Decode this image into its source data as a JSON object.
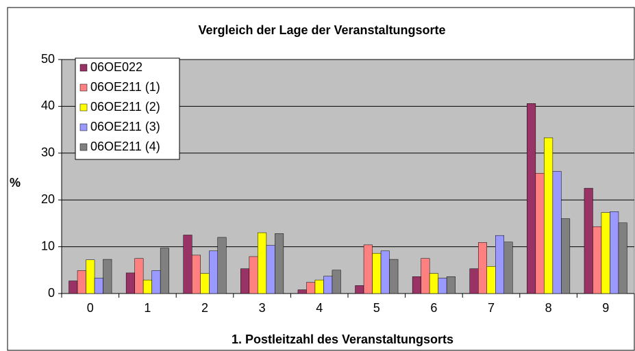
{
  "chart_data": {
    "type": "bar",
    "title": "Vergleich der Lage der Veranstaltungsorte",
    "x_label": "1. Postleitzahl des Veranstaltungsorts",
    "y_label": "%",
    "categories": [
      "0",
      "1",
      "2",
      "3",
      "4",
      "5",
      "6",
      "7",
      "8",
      "9"
    ],
    "series": [
      {
        "name": "06OE022",
        "color": "#993366",
        "values": [
          2.7,
          4.4,
          12.5,
          5.3,
          0.8,
          1.7,
          3.6,
          5.3,
          40.6,
          22.5
        ]
      },
      {
        "name": "06OE211 (1)",
        "color": "#ff8080",
        "values": [
          4.9,
          7.5,
          8.2,
          7.9,
          2.4,
          10.4,
          7.5,
          10.9,
          25.7,
          14.3
        ]
      },
      {
        "name": "06OE211 (2)",
        "color": "#ffff00",
        "values": [
          7.2,
          2.9,
          4.3,
          13.0,
          2.9,
          8.6,
          4.3,
          5.8,
          33.3,
          17.3
        ]
      },
      {
        "name": "06OE211 (3)",
        "color": "#9999ff",
        "values": [
          3.3,
          4.9,
          9.1,
          10.3,
          3.7,
          9.1,
          3.3,
          12.4,
          26.1,
          17.5
        ]
      },
      {
        "name": "06OE211 (4)",
        "color": "#808080",
        "values": [
          7.3,
          9.7,
          12.0,
          12.8,
          5.0,
          7.3,
          3.6,
          11.0,
          16.0,
          15.1
        ]
      }
    ],
    "ylim": [
      0,
      50
    ],
    "yticks": [
      0,
      10,
      20,
      30,
      40,
      50
    ],
    "grid": true,
    "legend": "upper left",
    "plot_background": "#c0c0c0"
  }
}
